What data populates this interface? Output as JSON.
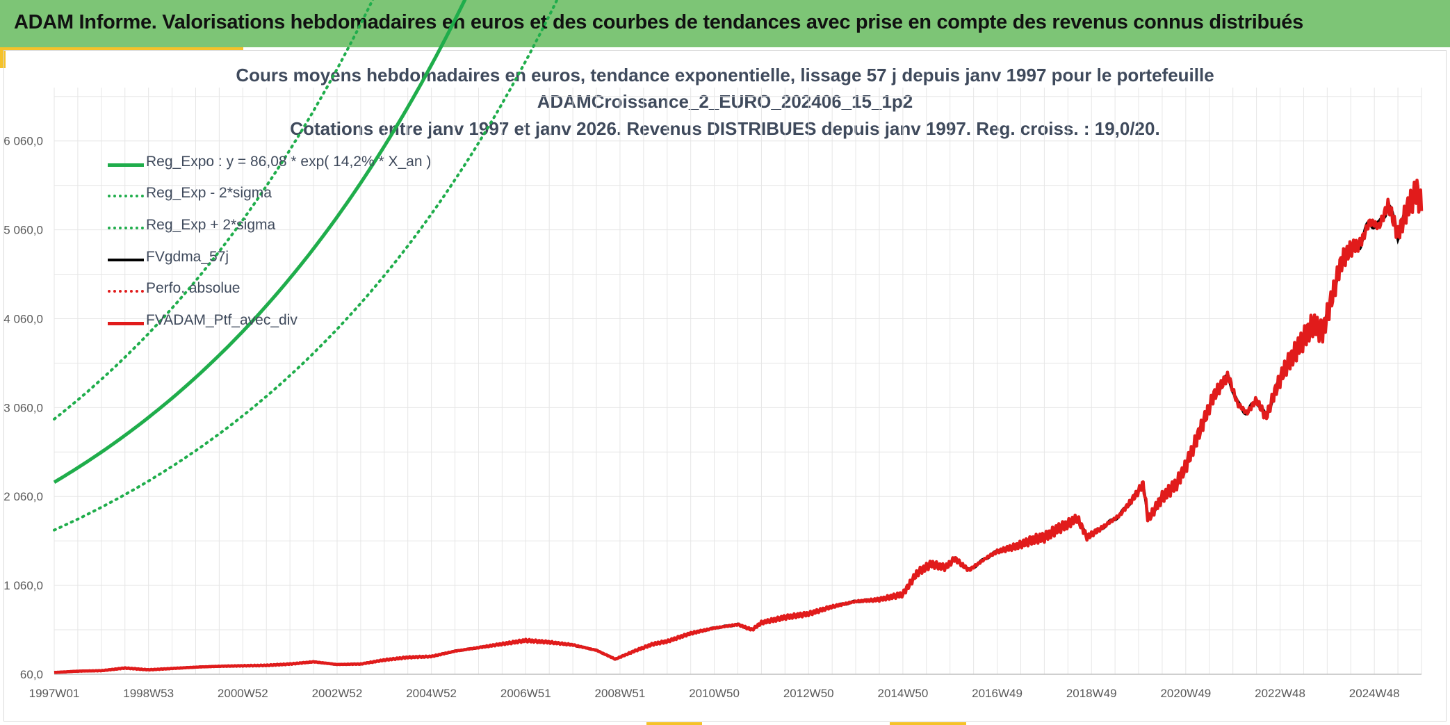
{
  "page_title": "ADAM Informe. Valorisations hebdomadaires en euros et des courbes de tendances avec prise en compte des revenus connus distribués",
  "chart_data": {
    "type": "line",
    "title_lines": [
      "Cours moyens hebdomadaires en euros, tendance exponentielle, lissage 57 j depuis janv 1997 pour le portefeuille",
      "ADAMCroissance_2_EURO_202406_15_1p2",
      "Cotations entre janv 1997 et janv 2026. Revenus DISTRIBUES depuis janv 1997. Reg. croiss. : 19,0/20."
    ],
    "xlabel": "",
    "ylabel": "",
    "xlim": [
      1997.0,
      2026.0
    ],
    "ylim": [
      60,
      6660
    ],
    "yticks": [
      60,
      1060,
      2060,
      3060,
      4060,
      5060,
      6060
    ],
    "ytick_labels": [
      "60,0",
      "1 060,0",
      "2 060,0",
      "3 060,0",
      "4 060,0",
      "5 060,0",
      "6 060,0"
    ],
    "xticks": [
      1997.0,
      1999.0,
      2001.0,
      2003.0,
      2005.0,
      2007.0,
      2009.0,
      2011.0,
      2013.0,
      2015.0,
      2017.0,
      2019.0,
      2021.0,
      2023.0,
      2025.0
    ],
    "xtick_labels": [
      "1997W01",
      "1998W53",
      "2000W52",
      "2002W52",
      "2004W52",
      "2006W51",
      "2008W51",
      "2010W50",
      "2012W50",
      "2014W50",
      "2016W49",
      "2018W49",
      "2020W49",
      "2022W48",
      "2024W48"
    ],
    "regression": {
      "a": 86.08,
      "rate": 0.142,
      "sigma_factor": 1.32
    },
    "series": [
      {
        "name": "Reg_Expo : y = 86,08 * exp( 14,2% *  X_an )",
        "color": "#1fad4b",
        "style": "solid",
        "width": 5
      },
      {
        "name": "Reg_Exp - 2*sigma",
        "color": "#1fad4b",
        "style": "dotted",
        "width": 4
      },
      {
        "name": "Reg_Exp + 2*sigma",
        "color": "#1fad4b",
        "style": "dotted",
        "width": 4
      },
      {
        "name": "FVgdma_57j",
        "color": "#000000",
        "style": "solid",
        "width": 4
      },
      {
        "name": "Perfo. absolue",
        "color": "#e11b1b",
        "style": "dotted",
        "width": 4
      },
      {
        "name": "FVADAM_Ptf_avec_div",
        "color": "#e11b1b",
        "style": "solid",
        "width": 5
      }
    ],
    "portfolio_points": [
      [
        1997.0,
        80
      ],
      [
        1997.5,
        95
      ],
      [
        1998.0,
        100
      ],
      [
        1998.5,
        130
      ],
      [
        1999.0,
        110
      ],
      [
        1999.5,
        125
      ],
      [
        2000.0,
        140
      ],
      [
        2000.5,
        150
      ],
      [
        2001.0,
        155
      ],
      [
        2001.5,
        160
      ],
      [
        2002.0,
        175
      ],
      [
        2002.5,
        200
      ],
      [
        2003.0,
        170
      ],
      [
        2003.5,
        175
      ],
      [
        2004.0,
        220
      ],
      [
        2004.5,
        250
      ],
      [
        2005.0,
        260
      ],
      [
        2005.5,
        320
      ],
      [
        2006.0,
        360
      ],
      [
        2006.5,
        400
      ],
      [
        2007.0,
        440
      ],
      [
        2007.5,
        420
      ],
      [
        2008.0,
        390
      ],
      [
        2008.5,
        330
      ],
      [
        2008.9,
        230
      ],
      [
        2009.3,
        320
      ],
      [
        2009.7,
        400
      ],
      [
        2010.0,
        430
      ],
      [
        2010.5,
        520
      ],
      [
        2011.0,
        580
      ],
      [
        2011.5,
        620
      ],
      [
        2011.8,
        560
      ],
      [
        2012.0,
        640
      ],
      [
        2012.5,
        700
      ],
      [
        2013.0,
        740
      ],
      [
        2013.5,
        820
      ],
      [
        2014.0,
        880
      ],
      [
        2014.5,
        900
      ],
      [
        2015.0,
        960
      ],
      [
        2015.3,
        1200
      ],
      [
        2015.6,
        1300
      ],
      [
        2015.9,
        1260
      ],
      [
        2016.1,
        1360
      ],
      [
        2016.4,
        1230
      ],
      [
        2016.8,
        1380
      ],
      [
        2017.0,
        1440
      ],
      [
        2017.4,
        1500
      ],
      [
        2017.8,
        1580
      ],
      [
        2018.0,
        1600
      ],
      [
        2018.3,
        1700
      ],
      [
        2018.5,
        1750
      ],
      [
        2018.7,
        1820
      ],
      [
        2018.9,
        1600
      ],
      [
        2019.2,
        1700
      ],
      [
        2019.6,
        1850
      ],
      [
        2019.9,
        2050
      ],
      [
        2020.1,
        2200
      ],
      [
        2020.2,
        1800
      ],
      [
        2020.5,
        2050
      ],
      [
        2020.8,
        2200
      ],
      [
        2021.0,
        2400
      ],
      [
        2021.3,
        2800
      ],
      [
        2021.6,
        3200
      ],
      [
        2021.9,
        3420
      ],
      [
        2022.1,
        3100
      ],
      [
        2022.3,
        3000
      ],
      [
        2022.5,
        3150
      ],
      [
        2022.7,
        2950
      ],
      [
        2022.9,
        3250
      ],
      [
        2023.1,
        3500
      ],
      [
        2023.4,
        3750
      ],
      [
        2023.7,
        4000
      ],
      [
        2023.9,
        3900
      ],
      [
        2024.1,
        4300
      ],
      [
        2024.3,
        4700
      ],
      [
        2024.5,
        4850
      ],
      [
        2024.7,
        4900
      ],
      [
        2024.9,
        5150
      ],
      [
        2025.1,
        5100
      ],
      [
        2025.3,
        5350
      ],
      [
        2025.5,
        5000
      ],
      [
        2025.7,
        5300
      ],
      [
        2025.9,
        5500
      ],
      [
        2026.0,
        5300
      ]
    ]
  }
}
